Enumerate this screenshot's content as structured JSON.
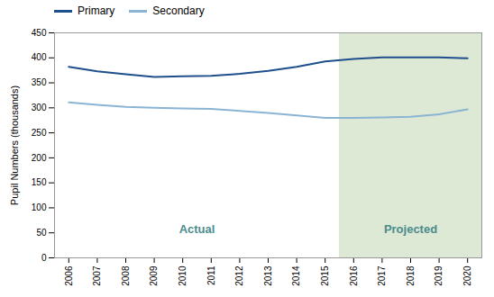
{
  "chart_data": {
    "type": "line",
    "x": [
      2006,
      2007,
      2008,
      2009,
      2010,
      2011,
      2012,
      2013,
      2014,
      2015,
      2016,
      2017,
      2018,
      2019,
      2020
    ],
    "series": [
      {
        "name": "Primary",
        "color": "#1f4e8c",
        "values": [
          382,
          373,
          367,
          362,
          363,
          364,
          368,
          374,
          382,
          393,
          398,
          401,
          401,
          401,
          399
        ]
      },
      {
        "name": "Secondary",
        "color": "#8ab4d4",
        "values": [
          311,
          306,
          302,
          300,
          299,
          298,
          294,
          290,
          285,
          280,
          280,
          281,
          282,
          287,
          297
        ]
      }
    ],
    "ylabel": "Pupil Numbers (thousands)",
    "xlim": [
      2005.5,
      2020.5
    ],
    "xticks": [
      2006,
      2007,
      2008,
      2009,
      2010,
      2011,
      2012,
      2013,
      2014,
      2015,
      2016,
      2017,
      2018,
      2019,
      2020
    ],
    "ylim": [
      0,
      450
    ],
    "yticks": [
      0,
      50,
      100,
      150,
      200,
      250,
      300,
      350,
      400,
      450
    ],
    "grid": false,
    "legend": "top",
    "shaded_regions": [
      {
        "x": [
          2015.5,
          2020.5
        ],
        "color": "#dde8d5"
      }
    ],
    "annotations": [
      {
        "text": "Actual",
        "color": "#4a8c8c"
      },
      {
        "text": "Projected",
        "color": "#4a8c8c"
      }
    ]
  }
}
